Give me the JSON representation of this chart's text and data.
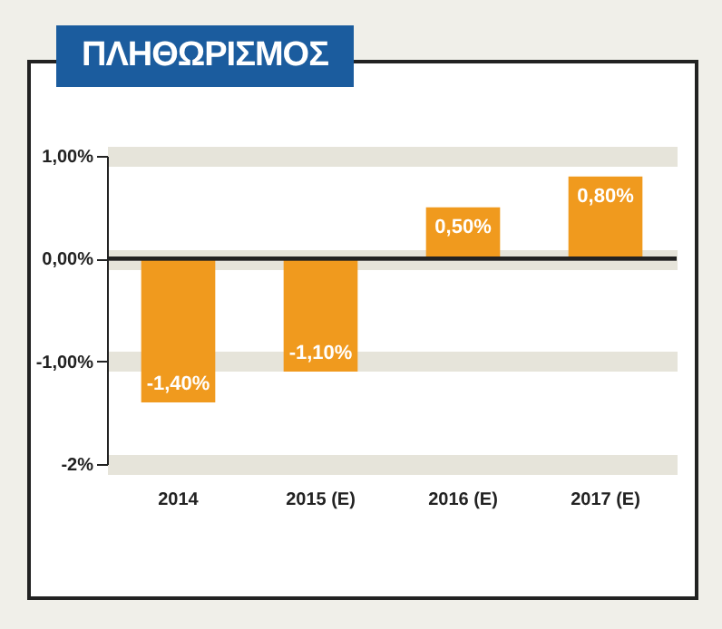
{
  "chart_data": {
    "type": "bar",
    "title": "ΠΛΗΘΩΡΙΣΜΟΣ",
    "categories": [
      "2014",
      "2015 (E)",
      "2016 (E)",
      "2017 (E)"
    ],
    "values": [
      -1.4,
      -1.1,
      0.5,
      0.8
    ],
    "value_labels": [
      "-1,40%",
      "-1,10%",
      "0,50%",
      "0,80%"
    ],
    "color": "#f09a1e",
    "ylim": [
      -2,
      1
    ],
    "yticks": [
      {
        "value": 1,
        "label": "1,00%"
      },
      {
        "value": 0,
        "label": "0,00%"
      },
      {
        "value": -1,
        "label": "-1,00%"
      },
      {
        "value": -2,
        "label": "-2%"
      }
    ],
    "grid": "y"
  }
}
